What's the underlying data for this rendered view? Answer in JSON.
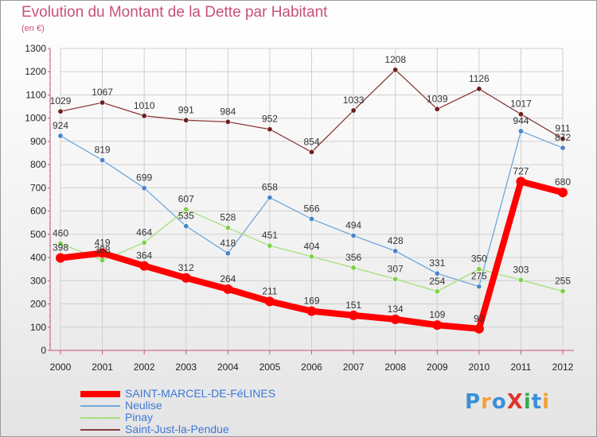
{
  "title": "Evolution du Montant de la Dette par Habitant",
  "subtitle": "(en €)",
  "logo": "ProXiti",
  "colors": {
    "title": "#c8507a",
    "axis": "#c8507a",
    "grid": "#cfcfcf",
    "legend_text": "#3c78d8",
    "logo": [
      "#3a8fd8",
      "#f2a13a",
      "#3a8fd8",
      "#e0342b",
      "#2fae4c",
      "#3a8fd8",
      "#f2a13a"
    ]
  },
  "chart_data": {
    "type": "line",
    "title": "Evolution du Montant de la Dette par Habitant",
    "ylabel": "(en €)",
    "xlabel": "",
    "x": [
      "2000",
      "2001",
      "2002",
      "2003",
      "2004",
      "2005",
      "2006",
      "2007",
      "2008",
      "2009",
      "2010",
      "2011",
      "2012"
    ],
    "ylim": [
      0,
      1300
    ],
    "yticks": [
      0,
      100,
      200,
      300,
      400,
      500,
      600,
      700,
      800,
      900,
      1000,
      1100,
      1200,
      1300
    ],
    "grid": true,
    "legend_position": "bottom-left",
    "series": [
      {
        "name": "SAINT-MARCEL-DE-FéLINES",
        "color": "#ff0000",
        "marker": "#ff0000",
        "bold": true,
        "values": [
          398,
          419,
          364,
          312,
          264,
          211,
          169,
          151,
          134,
          109,
          93,
          727,
          680
        ]
      },
      {
        "name": "Neulise",
        "color": "#6fa8dc",
        "marker": "#4a86c8",
        "bold": false,
        "values": [
          924,
          819,
          699,
          535,
          418,
          658,
          566,
          494,
          428,
          331,
          275,
          944,
          872
        ]
      },
      {
        "name": "Pinay",
        "color": "#a6e07a",
        "marker": "#7fd04a",
        "bold": false,
        "values": [
          460,
          388,
          464,
          607,
          528,
          451,
          404,
          356,
          307,
          254,
          350,
          303,
          255
        ]
      },
      {
        "name": "Saint-Just-la-Pendue",
        "color": "#8a3a3a",
        "marker": "#6e1f1f",
        "bold": false,
        "values": [
          1029,
          1067,
          1010,
          991,
          984,
          952,
          854,
          1033,
          1208,
          1039,
          1126,
          1017,
          911
        ]
      }
    ]
  }
}
